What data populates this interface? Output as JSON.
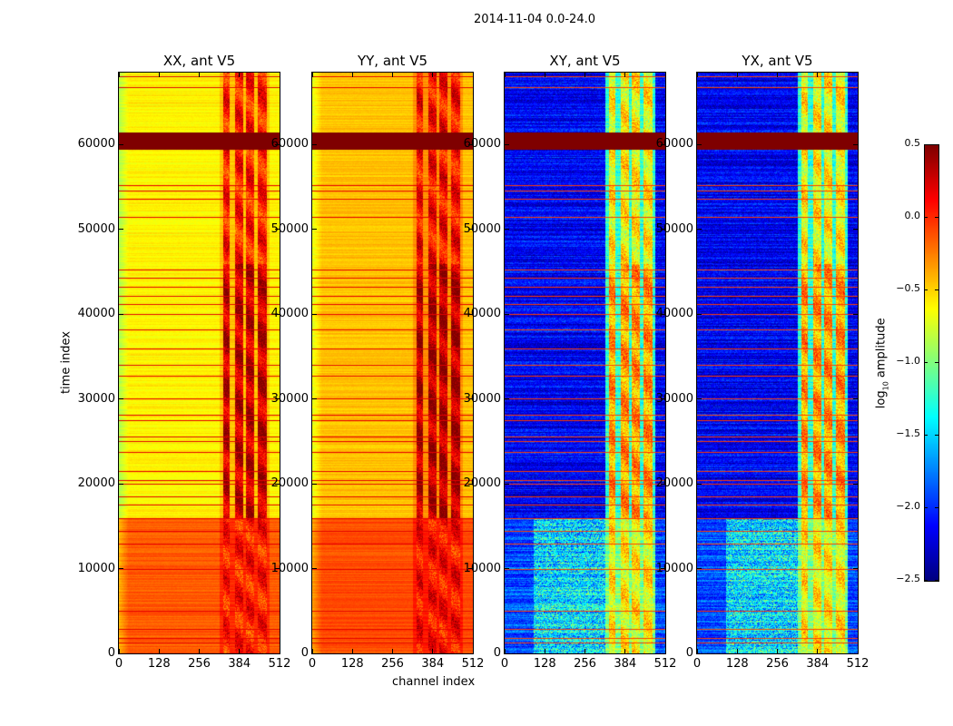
{
  "chart_data": {
    "type": "heatmap",
    "title": "2014-11-04 0.0-24.0",
    "xlabel": "channel index",
    "ylabel": "time index",
    "xlim": [
      0,
      512
    ],
    "ylim": [
      0,
      68500
    ],
    "xticks": [
      "0",
      "128",
      "256",
      "384",
      "512"
    ],
    "yticks": [
      "0",
      "10000",
      "20000",
      "30000",
      "40000",
      "50000",
      "60000"
    ],
    "colorbar": {
      "label_main": "log",
      "label_sub": "10",
      "label_rest": " amplitude",
      "range": [
        -2.5,
        0.5
      ],
      "ticks": [
        "0.5",
        "0.0",
        "−0.5",
        "−1.0",
        "−1.5",
        "−2.0",
        "−2.5"
      ],
      "colormap": "jet"
    },
    "panels": [
      {
        "title": "XX, ant V5",
        "base": -0.6,
        "low_region": -0.15,
        "band": 0.05,
        "line": 0.2
      },
      {
        "title": "YY, ant V5",
        "base": -0.45,
        "low_region": -0.1,
        "band": 0.1,
        "line": 0.2
      },
      {
        "title": "XY, ant V5",
        "base": -2.15,
        "low_region": -1.9,
        "band": -0.6,
        "line": -0.05
      },
      {
        "title": "YX, ant V5",
        "base": -2.15,
        "low_region": -1.9,
        "band": -0.6,
        "line": -0.05
      }
    ],
    "flagged_time_range": [
      59500,
      61500
    ],
    "low_region_end_time": 16000,
    "strong_band_time_range": [
      16000,
      46000
    ],
    "rfi_band_channels": [
      [
        330,
        352
      ],
      [
        368,
        396
      ],
      [
        404,
        430
      ],
      [
        440,
        470
      ]
    ],
    "flagged_times": [
      1300,
      1800,
      2900,
      5000,
      10000,
      13000,
      14500,
      16000,
      17500,
      18500,
      20000,
      20400,
      21500,
      23800,
      25000,
      25600,
      27500,
      28200,
      30100,
      32700,
      34000,
      36000,
      38200,
      40000,
      41200,
      42200,
      43200,
      44300,
      45300,
      51500,
      53600,
      54600,
      55200,
      66800,
      68100
    ]
  }
}
